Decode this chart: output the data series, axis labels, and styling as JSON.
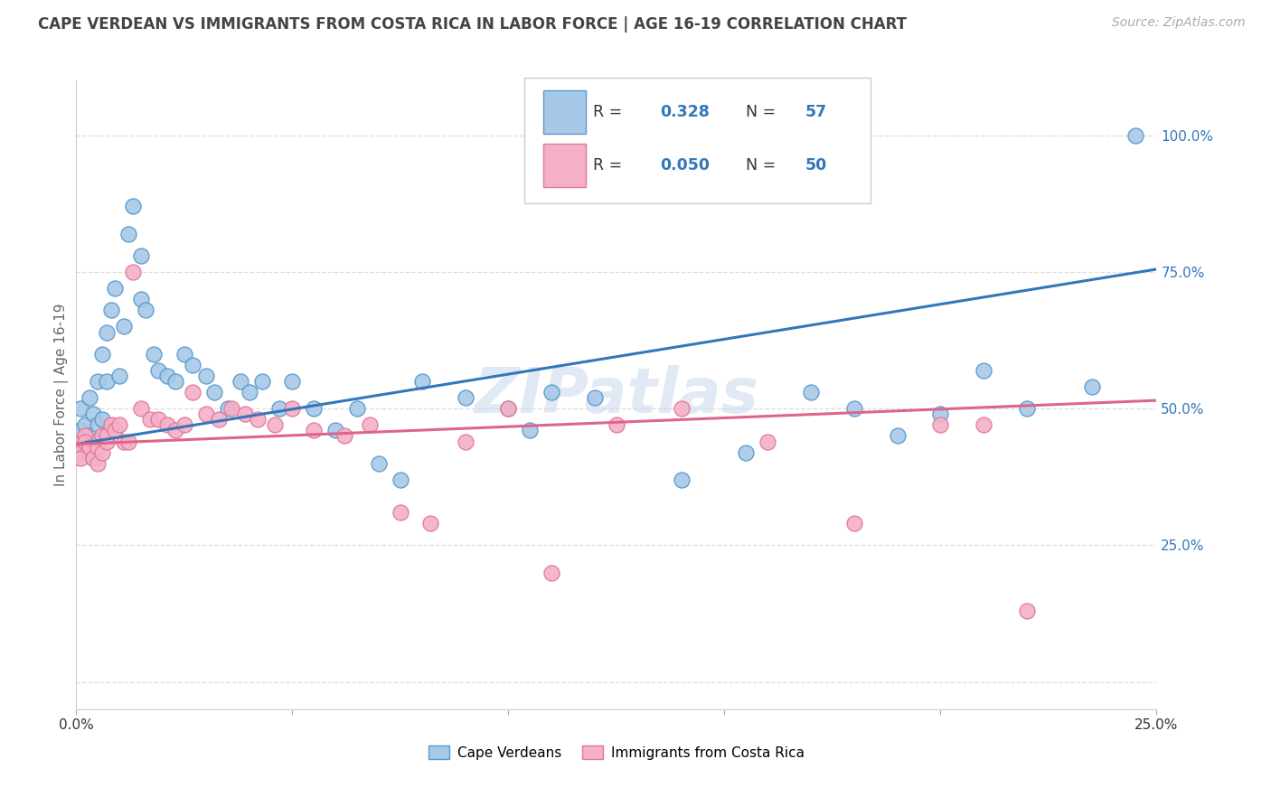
{
  "title": "CAPE VERDEAN VS IMMIGRANTS FROM COSTA RICA IN LABOR FORCE | AGE 16-19 CORRELATION CHART",
  "source": "Source: ZipAtlas.com",
  "ylabel": "In Labor Force | Age 16-19",
  "xlim": [
    0.0,
    0.25
  ],
  "ylim": [
    -0.05,
    1.1
  ],
  "xticks": [
    0.0,
    0.05,
    0.1,
    0.15,
    0.2,
    0.25
  ],
  "xticklabels": [
    "0.0%",
    "",
    "",
    "",
    "",
    "25.0%"
  ],
  "yticks": [
    0.0,
    0.25,
    0.5,
    0.75,
    1.0
  ],
  "yticklabels": [
    "",
    "25.0%",
    "50.0%",
    "75.0%",
    "100.0%"
  ],
  "blue_line_x": [
    0.0,
    0.25
  ],
  "blue_line_y": [
    0.435,
    0.755
  ],
  "pink_line_x": [
    0.0,
    0.25
  ],
  "pink_line_y": [
    0.435,
    0.515
  ],
  "blue_color": "#a8c8e8",
  "pink_color": "#f4b0c8",
  "blue_edge_color": "#5599cc",
  "pink_edge_color": "#e07898",
  "blue_line_color": "#3377bb",
  "pink_line_color": "#dd6688",
  "blue_label": "Cape Verdeans",
  "pink_label": "Immigrants from Costa Rica",
  "tick_color_y": "#3377bb",
  "source_color": "#aaaaaa",
  "title_color": "#444444",
  "axis_label_color": "#666666",
  "grid_color": "#dddddd",
  "blue_x": [
    0.001,
    0.001,
    0.002,
    0.003,
    0.003,
    0.004,
    0.004,
    0.005,
    0.005,
    0.006,
    0.006,
    0.007,
    0.007,
    0.008,
    0.009,
    0.01,
    0.011,
    0.012,
    0.013,
    0.015,
    0.015,
    0.016,
    0.018,
    0.019,
    0.021,
    0.023,
    0.025,
    0.027,
    0.03,
    0.032,
    0.035,
    0.038,
    0.04,
    0.043,
    0.047,
    0.05,
    0.055,
    0.06,
    0.065,
    0.07,
    0.075,
    0.08,
    0.09,
    0.1,
    0.105,
    0.11,
    0.12,
    0.14,
    0.155,
    0.17,
    0.18,
    0.19,
    0.2,
    0.21,
    0.22,
    0.235,
    0.245
  ],
  "blue_y": [
    0.46,
    0.5,
    0.47,
    0.45,
    0.52,
    0.49,
    0.44,
    0.47,
    0.55,
    0.48,
    0.6,
    0.64,
    0.55,
    0.68,
    0.72,
    0.56,
    0.65,
    0.82,
    0.87,
    0.7,
    0.78,
    0.68,
    0.6,
    0.57,
    0.56,
    0.55,
    0.6,
    0.58,
    0.56,
    0.53,
    0.5,
    0.55,
    0.53,
    0.55,
    0.5,
    0.55,
    0.5,
    0.46,
    0.5,
    0.4,
    0.37,
    0.55,
    0.52,
    0.5,
    0.46,
    0.53,
    0.52,
    0.37,
    0.42,
    0.53,
    0.5,
    0.45,
    0.49,
    0.57,
    0.5,
    0.54,
    1.0
  ],
  "pink_x": [
    0.001,
    0.001,
    0.001,
    0.002,
    0.002,
    0.003,
    0.003,
    0.004,
    0.004,
    0.005,
    0.005,
    0.006,
    0.006,
    0.007,
    0.007,
    0.008,
    0.009,
    0.01,
    0.011,
    0.012,
    0.013,
    0.015,
    0.017,
    0.019,
    0.021,
    0.023,
    0.025,
    0.027,
    0.03,
    0.033,
    0.036,
    0.039,
    0.042,
    0.046,
    0.05,
    0.055,
    0.062,
    0.068,
    0.075,
    0.082,
    0.09,
    0.1,
    0.11,
    0.125,
    0.14,
    0.16,
    0.18,
    0.2,
    0.21,
    0.22
  ],
  "pink_y": [
    0.44,
    0.42,
    0.41,
    0.45,
    0.44,
    0.43,
    0.43,
    0.41,
    0.41,
    0.43,
    0.4,
    0.42,
    0.45,
    0.44,
    0.45,
    0.47,
    0.46,
    0.47,
    0.44,
    0.44,
    0.75,
    0.5,
    0.48,
    0.48,
    0.47,
    0.46,
    0.47,
    0.53,
    0.49,
    0.48,
    0.5,
    0.49,
    0.48,
    0.47,
    0.5,
    0.46,
    0.45,
    0.47,
    0.31,
    0.29,
    0.44,
    0.5,
    0.2,
    0.47,
    0.5,
    0.44,
    0.29,
    0.47,
    0.47,
    0.13
  ]
}
